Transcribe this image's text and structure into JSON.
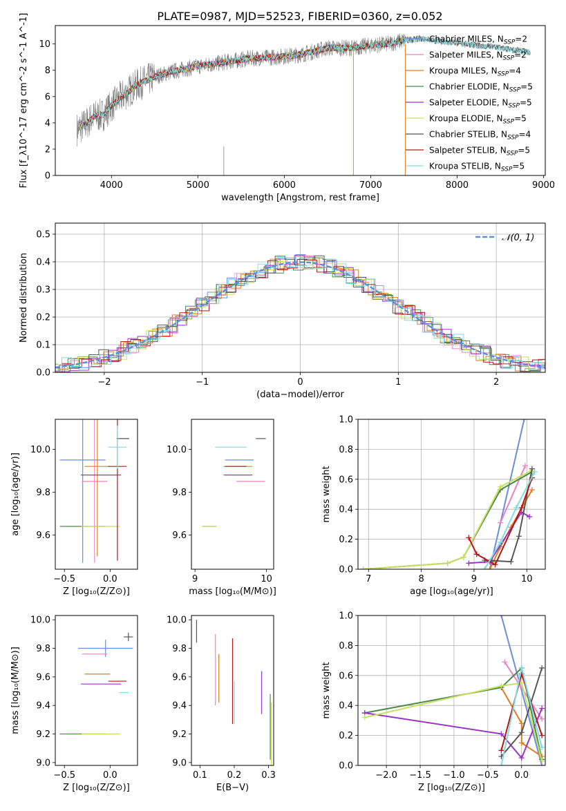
{
  "figure_title": "PLATE=0987, MJD=52523, FIBERID=0360, z=0.052",
  "colors": {
    "Chabrier MILES": "#6a8be0",
    "Salpeter MILES": "#e884c0",
    "Kroupa MILES": "#e07b20",
    "Chabrier ELODIE": "#4a8a4a",
    "Salpeter ELODIE": "#9a35c0",
    "Kroupa ELODIE": "#c8e060",
    "Chabrier STELIB": "#555555",
    "Salpeter STELIB": "#b01818",
    "Kroupa STELIB": "#80dce0",
    "data": "#808080",
    "gauss": "#5b8fdc"
  },
  "chart_data": [
    {
      "id": "spectrum",
      "type": "line",
      "xlabel": "wavelength [Angstrom, rest frame]",
      "ylabel": "Flux [f_λ10^-17 erg cm^-2 s^-1 A^-1]",
      "xlim": [
        3350,
        9020
      ],
      "ylim": [
        0,
        11.4
      ],
      "xticks": [
        4000,
        5000,
        6000,
        7000,
        8000,
        9000
      ],
      "yticks": [
        0,
        2,
        4,
        6,
        8,
        10
      ],
      "legend": {
        "placement": "top-right",
        "entries": [
          {
            "pre": "Chabrier MILES, N",
            "sub": "SSP",
            "post": "=2"
          },
          {
            "pre": "Salpeter MILES, N",
            "sub": "SSP",
            "post": "=2"
          },
          {
            "pre": "Kroupa MILES, N",
            "sub": "SSP",
            "post": "=4"
          },
          {
            "pre": "Chabrier ELODIE, N",
            "sub": "SSP",
            "post": "=5"
          },
          {
            "pre": "Salpeter ELODIE, N",
            "sub": "SSP",
            "post": "=5"
          },
          {
            "pre": "Kroupa ELODIE, N",
            "sub": "SSP",
            "post": "=5"
          },
          {
            "pre": "Chabrier STELIB, N",
            "sub": "SSP",
            "post": "=4"
          },
          {
            "pre": "Salpeter STELIB, N",
            "sub": "SSP",
            "post": "=5"
          },
          {
            "pre": "Kroupa STELIB, N",
            "sub": "SSP",
            "post": "=5"
          }
        ]
      },
      "continuum": {
        "x": [
          3600,
          3700,
          3800,
          3900,
          4000,
          4100,
          4200,
          4300,
          4400,
          4500,
          4700,
          5000,
          5300,
          5600,
          5900,
          6200,
          6500,
          6800,
          7000,
          7200,
          7400,
          7600,
          7800,
          8000,
          8200,
          8400,
          8600,
          8800
        ],
        "y": [
          3.5,
          3.9,
          4.5,
          4.6,
          5.3,
          5.9,
          6.4,
          6.9,
          7.2,
          7.5,
          7.9,
          8.3,
          8.6,
          8.9,
          9.0,
          9.2,
          9.7,
          9.7,
          9.9,
          10.0,
          10.3,
          10.4,
          10.2,
          10.1,
          9.9,
          9.8,
          9.6,
          9.4
        ]
      }
    },
    {
      "id": "residuals",
      "type": "histogram",
      "xlabel": "(data-model)/error",
      "ylabel": "Normed distribution",
      "xlim": [
        -2.5,
        2.5
      ],
      "ylim": [
        0,
        0.54
      ],
      "xticks": [
        -2,
        -1,
        0,
        1,
        2
      ],
      "yticks": [
        0.0,
        0.1,
        0.2,
        0.3,
        0.4,
        0.5
      ],
      "legend": {
        "placement": "top-right",
        "label": "𝒩(0, 1)"
      },
      "gaussian": {
        "mean": 0,
        "sigma": 1
      }
    },
    {
      "id": "z-age",
      "type": "errorbar",
      "xlabel": "Z [log₁₀(Z/Z⊙)]",
      "ylabel": "age  [log₁₀(age/yr)]",
      "xlim": [
        -0.6,
        0.3
      ],
      "ylim": [
        9.44,
        10.14
      ],
      "xticks": [
        -0.5,
        0.0
      ],
      "yticks": [
        9.6,
        9.8,
        10.0
      ],
      "points": [
        {
          "model": "Chabrier MILES",
          "x": -0.3,
          "y": 9.95,
          "xerr": 0.25,
          "yerr": 0.48
        },
        {
          "model": "Salpeter MILES",
          "x": -0.17,
          "y": 9.85,
          "xerr": 0.14,
          "yerr": 0.38
        },
        {
          "model": "Kroupa MILES",
          "x": -0.14,
          "y": 9.92,
          "xerr": 0.14,
          "yerr": 0.42
        },
        {
          "model": "Chabrier ELODIE",
          "x": -0.3,
          "y": 9.64,
          "xerr": 0.25,
          "yerr": 0.0
        },
        {
          "model": "Salpeter ELODIE",
          "x": -0.1,
          "y": 9.88,
          "xerr": 0.22,
          "yerr": 0.0
        },
        {
          "model": "Kroupa ELODIE",
          "x": -0.1,
          "y": 9.64,
          "xerr": 0.21,
          "yerr": 0.0
        },
        {
          "model": "Chabrier STELIB",
          "x": 0.14,
          "y": 10.05,
          "xerr": 0.07,
          "yerr": 0.0
        },
        {
          "model": "Salpeter STELIB",
          "x": 0.08,
          "y": 9.92,
          "xerr": 0.1,
          "yerr": 0.44
        },
        {
          "model": "Kroupa STELIB",
          "x": 0.08,
          "y": 10.01,
          "xerr": 0.1,
          "yerr": 0.1
        }
      ]
    },
    {
      "id": "mass-age",
      "type": "errorbar",
      "xlabel": "mass [log₁₀(M/M⊙)]",
      "ylabel": "",
      "xlim": [
        8.95,
        10.1
      ],
      "ylim": [
        9.44,
        10.14
      ],
      "xticks": [
        9,
        10
      ],
      "yticks": [
        9.6,
        9.8,
        10.0
      ],
      "points": [
        {
          "model": "Chabrier MILES",
          "x": 9.62,
          "y": 9.95,
          "xerr": 0.2,
          "yerr": 0.0
        },
        {
          "model": "Salpeter MILES",
          "x": 9.78,
          "y": 9.85,
          "xerr": 0.2,
          "yerr": 0.0
        },
        {
          "model": "Kroupa MILES",
          "x": 9.6,
          "y": 9.92,
          "xerr": 0.2,
          "yerr": 0.0
        },
        {
          "model": "Chabrier ELODIE",
          "x": 9.2,
          "y": 9.64,
          "xerr": 0.1,
          "yerr": 0.0
        },
        {
          "model": "Salpeter ELODIE",
          "x": 9.6,
          "y": 9.88,
          "xerr": 0.2,
          "yerr": 0.0
        },
        {
          "model": "Kroupa ELODIE",
          "x": 9.2,
          "y": 9.64,
          "xerr": 0.1,
          "yerr": 0.0
        },
        {
          "model": "Chabrier STELIB",
          "x": 9.92,
          "y": 10.05,
          "xerr": 0.07,
          "yerr": 0.0
        },
        {
          "model": "Salpeter STELIB",
          "x": 9.57,
          "y": 9.92,
          "xerr": 0.15,
          "yerr": 0.0
        },
        {
          "model": "Kroupa STELIB",
          "x": 9.5,
          "y": 10.01,
          "xerr": 0.22,
          "yerr": 0.0
        }
      ]
    },
    {
      "id": "age-weight",
      "type": "line",
      "xlabel": "age  [log₁₀(age/yr)]",
      "ylabel": "mass weight",
      "xlim": [
        6.8,
        10.35
      ],
      "ylim": [
        0,
        1
      ],
      "xticks": [
        7,
        8,
        9,
        10
      ],
      "yticks": [
        0.0,
        0.2,
        0.4,
        0.6,
        0.8,
        1.0
      ],
      "series": [
        {
          "model": "Chabrier MILES",
          "x": [
            9.3,
            9.95
          ],
          "y": [
            0.0,
            1.0
          ]
        },
        {
          "model": "Salpeter MILES",
          "x": [
            9.5,
            9.97
          ],
          "y": [
            0.31,
            0.69
          ]
        },
        {
          "model": "Kroupa MILES",
          "x": [
            9.3,
            9.5,
            9.7,
            10.1
          ],
          "y": [
            0.0,
            0.15,
            0.28,
            0.53
          ]
        },
        {
          "model": "Chabrier ELODIE",
          "x": [
            6.9,
            8.5,
            8.8,
            9.5,
            10.1
          ],
          "y": [
            0.0,
            0.04,
            0.08,
            0.53,
            0.65
          ]
        },
        {
          "model": "Salpeter ELODIE",
          "x": [
            8.9,
            9.3,
            9.9,
            10.05
          ],
          "y": [
            0.04,
            0.05,
            0.38,
            0.35
          ]
        },
        {
          "model": "Kroupa ELODIE",
          "x": [
            6.9,
            8.5,
            8.8,
            9.5,
            10.1
          ],
          "y": [
            0.0,
            0.04,
            0.08,
            0.55,
            0.66
          ]
        },
        {
          "model": "Chabrier STELIB",
          "x": [
            9.2,
            9.7,
            9.85,
            10.1
          ],
          "y": [
            0.06,
            0.05,
            0.22,
            0.67
          ]
        },
        {
          "model": "Salpeter STELIB",
          "x": [
            8.9,
            9.05,
            9.4,
            9.9,
            10.1
          ],
          "y": [
            0.21,
            0.1,
            0.03,
            0.41,
            0.61
          ]
        },
        {
          "model": "Kroupa STELIB",
          "x": [
            9.2,
            9.5,
            9.8,
            10.15
          ],
          "y": [
            0.0,
            0.18,
            0.41,
            0.65
          ]
        }
      ]
    },
    {
      "id": "z-mass",
      "type": "errorbar",
      "xlabel": "Z [log₁₀(Z/Z⊙)]",
      "ylabel": "mass [log₁₀(M/M⊙)]",
      "xlim": [
        -0.6,
        0.3
      ],
      "ylim": [
        8.98,
        10.03
      ],
      "xticks": [
        -0.5,
        0.0
      ],
      "yticks": [
        9.0,
        9.2,
        9.4,
        9.6,
        9.8,
        10.0
      ],
      "points": [
        {
          "model": "Chabrier MILES",
          "x": -0.05,
          "y": 9.8,
          "xerr": 0.3,
          "yerr": 0.06
        },
        {
          "model": "Salpeter MILES",
          "x": -0.17,
          "y": 9.76,
          "xerr": 0.14,
          "yerr": 0.0
        },
        {
          "model": "Kroupa MILES",
          "x": -0.14,
          "y": 9.62,
          "xerr": 0.14,
          "yerr": 0.0
        },
        {
          "model": "Chabrier ELODIE",
          "x": -0.3,
          "y": 9.2,
          "xerr": 0.25,
          "yerr": 0.0
        },
        {
          "model": "Salpeter ELODIE",
          "x": -0.1,
          "y": 9.55,
          "xerr": 0.22,
          "yerr": 0.0
        },
        {
          "model": "Kroupa ELODIE",
          "x": -0.1,
          "y": 9.2,
          "xerr": 0.21,
          "yerr": 0.0
        },
        {
          "model": "Chabrier STELIB",
          "x": 0.2,
          "y": 9.88,
          "xerr": 0.05,
          "yerr": 0.03
        },
        {
          "model": "Salpeter STELIB",
          "x": 0.08,
          "y": 9.57,
          "xerr": 0.1,
          "yerr": 0.0
        },
        {
          "model": "Kroupa STELIB",
          "x": 0.15,
          "y": 9.49,
          "xerr": 0.05,
          "yerr": 0.0
        }
      ]
    },
    {
      "id": "ebv-mass",
      "type": "errorbar",
      "xlabel": "E(B-V)",
      "ylabel": "",
      "xlim": [
        0.075,
        0.315
      ],
      "ylim": [
        8.98,
        10.03
      ],
      "xticks": [
        0.1,
        0.2,
        0.3
      ],
      "yticks": [
        9.0,
        9.2,
        9.4,
        9.6,
        9.8,
        10.0
      ],
      "points": [
        {
          "model": "Chabrier STELIB",
          "x": 0.09,
          "y": 9.92,
          "xerr": 0.0,
          "yerr": 0.08
        },
        {
          "model": "Salpeter MILES",
          "x": 0.145,
          "y": 9.65,
          "xerr": 0.0,
          "yerr": 0.25
        },
        {
          "model": "Kroupa MILES",
          "x": 0.155,
          "y": 9.59,
          "xerr": 0.0,
          "yerr": 0.17
        },
        {
          "model": "Salpeter STELIB",
          "x": 0.195,
          "y": 9.57,
          "xerr": 0.0,
          "yerr": 0.3
        },
        {
          "model": "Kroupa STELIB",
          "x": 0.2,
          "y": 9.42,
          "xerr": 0.0,
          "yerr": 0.15
        },
        {
          "model": "Salpeter ELODIE",
          "x": 0.28,
          "y": 9.49,
          "xerr": 0.0,
          "yerr": 0.15
        },
        {
          "model": "Chabrier ELODIE",
          "x": 0.305,
          "y": 9.25,
          "xerr": 0.0,
          "yerr": 0.23
        },
        {
          "model": "Kroupa ELODIE",
          "x": 0.308,
          "y": 9.2,
          "xerr": 0.0,
          "yerr": 0.22
        }
      ]
    },
    {
      "id": "z-weight",
      "type": "line",
      "xlabel": "Z [log₁₀(Z/Z⊙)]",
      "ylabel": "mass weight",
      "xlim": [
        -2.42,
        0.35
      ],
      "ylim": [
        0,
        1
      ],
      "xticks": [
        -2.0,
        -1.5,
        -1.0,
        -0.5,
        0.0
      ],
      "yticks": [
        0.0,
        0.2,
        0.4,
        0.6,
        0.8,
        1.0
      ],
      "series": [
        {
          "model": "Chabrier MILES",
          "x": [
            -0.3,
            0.3
          ],
          "y": [
            1.0,
            0.0
          ]
        },
        {
          "model": "Salpeter MILES",
          "x": [
            -0.25,
            0.3
          ],
          "y": [
            0.69,
            0.31
          ]
        },
        {
          "model": "Kroupa MILES",
          "x": [
            -0.3,
            0.0,
            0.0,
            0.3
          ],
          "y": [
            0.52,
            0.28,
            0.15,
            0.06
          ]
        },
        {
          "model": "Chabrier ELODIE",
          "x": [
            -2.32,
            -0.3,
            0.0,
            0.3
          ],
          "y": [
            0.35,
            0.52,
            0.65,
            0.04
          ]
        },
        {
          "model": "Salpeter ELODIE",
          "x": [
            -2.32,
            -0.3,
            0.0,
            0.3
          ],
          "y": [
            0.35,
            0.21,
            0.05,
            0.38
          ]
        },
        {
          "model": "Kroupa ELODIE",
          "x": [
            -2.32,
            -0.3,
            0.0,
            0.3
          ],
          "y": [
            0.32,
            0.53,
            0.55,
            0.03
          ]
        },
        {
          "model": "Chabrier STELIB",
          "x": [
            -0.3,
            0.0,
            0.3
          ],
          "y": [
            0.06,
            0.22,
            0.65
          ]
        },
        {
          "model": "Salpeter STELIB",
          "x": [
            -0.3,
            0.0,
            0.3
          ],
          "y": [
            0.1,
            0.61,
            0.2
          ]
        },
        {
          "model": "Kroupa STELIB",
          "x": [
            -0.3,
            0.0,
            0.3
          ],
          "y": [
            0.0,
            0.65,
            0.12
          ]
        }
      ]
    }
  ]
}
